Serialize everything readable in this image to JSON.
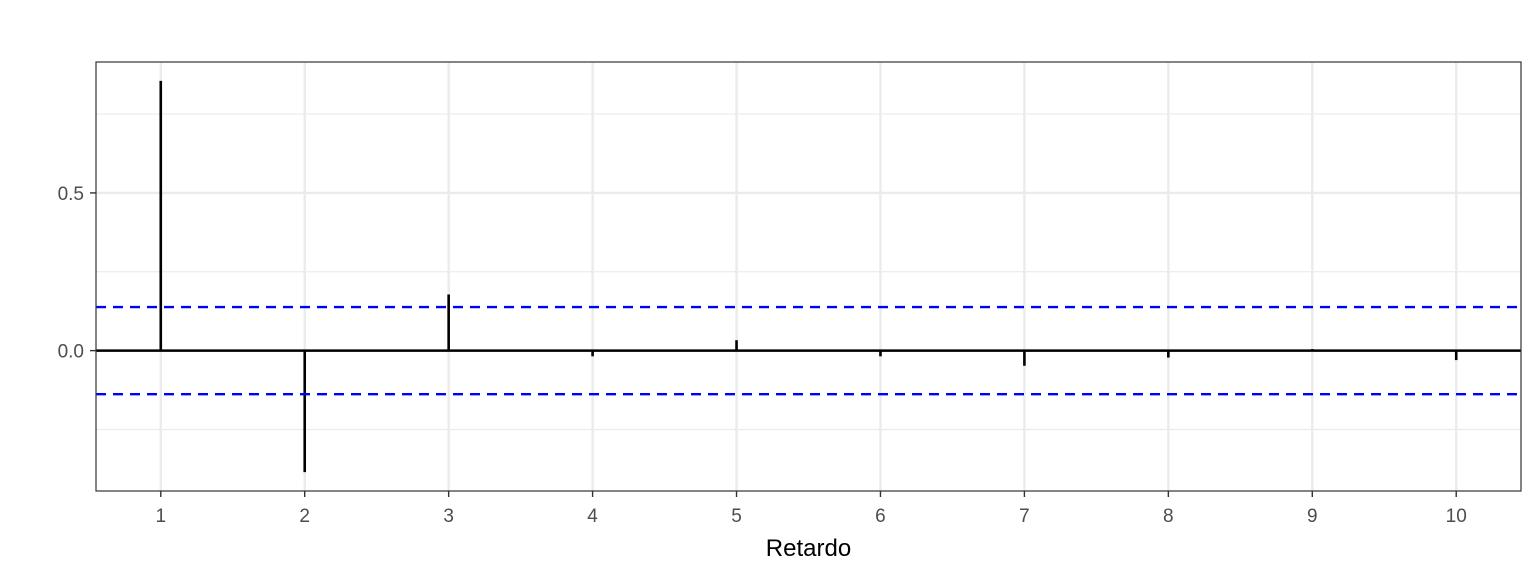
{
  "chart_data": {
    "type": "bar",
    "subtype": "correlogram",
    "title": "",
    "xlabel": "Retardo",
    "ylabel": "",
    "x": [
      1,
      2,
      3,
      4,
      5,
      6,
      7,
      8,
      9,
      10
    ],
    "values": [
      0.855,
      -0.385,
      0.178,
      -0.018,
      0.033,
      -0.018,
      -0.048,
      -0.022,
      0.005,
      -0.03
    ],
    "confidence_bound": 0.138,
    "xticks": [
      "1",
      "2",
      "3",
      "4",
      "5",
      "6",
      "7",
      "8",
      "9",
      "10"
    ],
    "yticks": [
      {
        "value": 0.0,
        "label": "0.0"
      },
      {
        "value": 0.5,
        "label": "0.5"
      }
    ],
    "xlim": [
      0.55,
      10.45
    ],
    "ylim": [
      -0.445,
      0.915
    ],
    "grid": true,
    "colors": {
      "bars": "#000000",
      "zero_line": "#000000",
      "confidence_lines": "#0000ff",
      "grid": "#ebebeb",
      "panel_border": "#333333"
    }
  }
}
